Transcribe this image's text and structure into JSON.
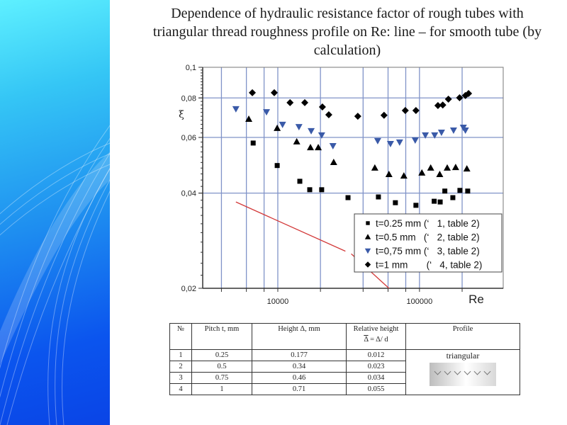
{
  "title": "Dependence of hydraulic resistance factor of rough tubes with triangular thread roughness profile on Re: line – for smooth tube (by calculation)",
  "colors": {
    "grid": "#8093c8",
    "blue_marker": "#3a5aa8",
    "smooth_line": "#d33a3a",
    "axis": "#333333"
  },
  "chart_data": {
    "type": "scatter",
    "xscale": "log",
    "yscale": "log",
    "xlabel": "Re",
    "ylabel": "ξ",
    "xlim": [
      2950,
      390000
    ],
    "ylim": [
      0.02,
      0.1
    ],
    "x_ticks": [
      {
        "value": 10000,
        "label": "10000"
      },
      {
        "value": 100000,
        "label": "100000"
      }
    ],
    "x_minor_grid": [
      4000,
      6000,
      8000,
      10000,
      20000,
      40000,
      60000,
      80000,
      100000,
      200000
    ],
    "y_ticks": [
      {
        "value": 0.1,
        "label": "0,1"
      },
      {
        "value": 0.08,
        "label": "0,08"
      },
      {
        "value": 0.06,
        "label": "0,06"
      },
      {
        "value": 0.04,
        "label": "0,04"
      },
      {
        "value": 0.02,
        "label": "0,02"
      }
    ],
    "y_grid": [
      0.08,
      0.06,
      0.04
    ],
    "grid": true,
    "legend_position": "bottom-right",
    "series": [
      {
        "name": "t=0.25 mm (‘   1, table 2)",
        "marker": "square",
        "color": "#000000",
        "points": [
          [
            6700,
            0.0576
          ],
          [
            9900,
            0.0489
          ],
          [
            14300,
            0.0436
          ],
          [
            16800,
            0.041
          ],
          [
            20400,
            0.041
          ],
          [
            31300,
            0.0387
          ],
          [
            51300,
            0.0389
          ],
          [
            67600,
            0.0373
          ],
          [
            94400,
            0.0366
          ],
          [
            127000,
            0.0377
          ],
          [
            140000,
            0.0375
          ],
          [
            151000,
            0.0406
          ],
          [
            172000,
            0.0387
          ],
          [
            193000,
            0.0408
          ],
          [
            219000,
            0.0406
          ]
        ]
      },
      {
        "name": "t=0.5 mm   (‘   2, table 2)",
        "marker": "triangle-up",
        "color": "#000000",
        "points": [
          [
            6240,
            0.0686
          ],
          [
            9900,
            0.0642
          ],
          [
            13600,
            0.0582
          ],
          [
            17000,
            0.0558
          ],
          [
            19300,
            0.0558
          ],
          [
            24800,
            0.0501
          ],
          [
            48400,
            0.0481
          ],
          [
            60900,
            0.0459
          ],
          [
            77600,
            0.0454
          ],
          [
            104000,
            0.0464
          ],
          [
            120000,
            0.0481
          ],
          [
            139000,
            0.0459
          ],
          [
            157000,
            0.0481
          ],
          [
            180000,
            0.0483
          ],
          [
            216000,
            0.0478
          ]
        ]
      },
      {
        "name": "t=0,75 mm (‘   3, table 2)",
        "marker": "triangle-down",
        "color": "#3a5aa8",
        "points": [
          [
            5060,
            0.0738
          ],
          [
            8320,
            0.0722
          ],
          [
            10800,
            0.0659
          ],
          [
            14100,
            0.0648
          ],
          [
            17200,
            0.0629
          ],
          [
            20400,
            0.061
          ],
          [
            24500,
            0.0564
          ],
          [
            50700,
            0.0585
          ],
          [
            62400,
            0.0573
          ],
          [
            72400,
            0.0579
          ],
          [
            93300,
            0.0588
          ],
          [
            110000,
            0.061
          ],
          [
            128000,
            0.061
          ],
          [
            143000,
            0.0622
          ],
          [
            174000,
            0.0632
          ],
          [
            204000,
            0.0645
          ],
          [
            211000,
            0.0632
          ]
        ]
      },
      {
        "name": "t=1 mm       (‘   4, table 2)",
        "marker": "diamond",
        "color": "#000000",
        "points": [
          [
            6610,
            0.0831
          ],
          [
            9440,
            0.0831
          ],
          [
            12200,
            0.0773
          ],
          [
            15500,
            0.0773
          ],
          [
            20650,
            0.0749
          ],
          [
            22900,
            0.0708
          ],
          [
            36700,
            0.07
          ],
          [
            56200,
            0.0705
          ],
          [
            79400,
            0.073
          ],
          [
            94400,
            0.073
          ],
          [
            135000,
            0.0757
          ],
          [
            146000,
            0.076
          ],
          [
            160000,
            0.0793
          ],
          [
            192000,
            0.0801
          ],
          [
            211000,
            0.0814
          ],
          [
            222000,
            0.0826
          ]
        ]
      }
    ],
    "smooth_tube_line": {
      "name": "smooth tube (by calculation)",
      "points": [
        [
          5060,
          0.0375
        ],
        [
          60900,
          0.02
        ]
      ],
      "gap": [
        [
          30000,
          0.0262
        ],
        [
          33000,
          0.0257
        ]
      ]
    }
  },
  "table": {
    "headers": [
      "№",
      "Pitch t, mm",
      "Height Δ, mm",
      "Relative height",
      "Profile"
    ],
    "relative_height_formula": {
      "overlined": "Δ",
      "rest": " = Δ/ d"
    },
    "rows": [
      [
        "1",
        "0.25",
        "0.177",
        "0.012"
      ],
      [
        "2",
        "0.5",
        "0.34",
        "0.023"
      ],
      [
        "3",
        "0.75",
        "0.46",
        "0.034"
      ],
      [
        "4",
        "1",
        "0.71",
        "0.055"
      ]
    ],
    "profile_label": "triangular"
  }
}
